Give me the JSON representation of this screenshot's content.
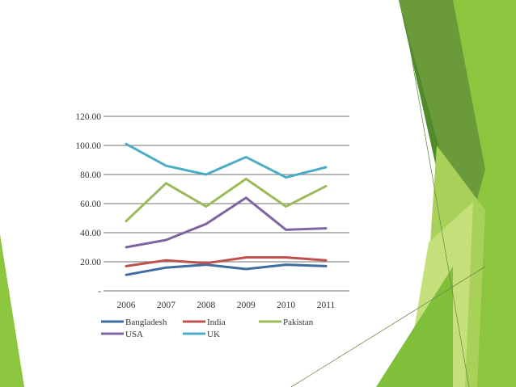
{
  "colors": {
    "bangladesh": "#3e6ea0",
    "india": "#c0504d",
    "pakistan": "#9bbb59",
    "usa": "#8064a2",
    "uk": "#4bacc6",
    "grid": "#8c8c8c",
    "green_light": "#c5e07a",
    "green_mid": "#8cc63f",
    "green_dark": "#4f8a2b"
  },
  "chart_data": {
    "type": "line",
    "title": "",
    "xlabel": "",
    "ylabel": "",
    "x": [
      "2006",
      "2007",
      "2008",
      "2009",
      "2010",
      "2011"
    ],
    "ylim": [
      0,
      120
    ],
    "y_ticks": [
      "120.00",
      "100.00",
      "80.00",
      "60.00",
      "40.00",
      "20.00",
      "-"
    ],
    "grid": true,
    "legend_position": "bottom",
    "series": [
      {
        "name": "Bangladesh",
        "values": [
          11,
          16,
          18,
          15,
          18,
          17
        ]
      },
      {
        "name": "India",
        "values": [
          17,
          21,
          19,
          23,
          23,
          21
        ]
      },
      {
        "name": "Pakistan",
        "values": [
          48,
          74,
          58,
          77,
          58,
          72
        ]
      },
      {
        "name": "USA",
        "values": [
          30,
          35,
          46,
          64,
          42,
          43
        ]
      },
      {
        "name": "UK",
        "values": [
          101,
          86,
          80,
          92,
          78,
          85
        ]
      }
    ]
  }
}
